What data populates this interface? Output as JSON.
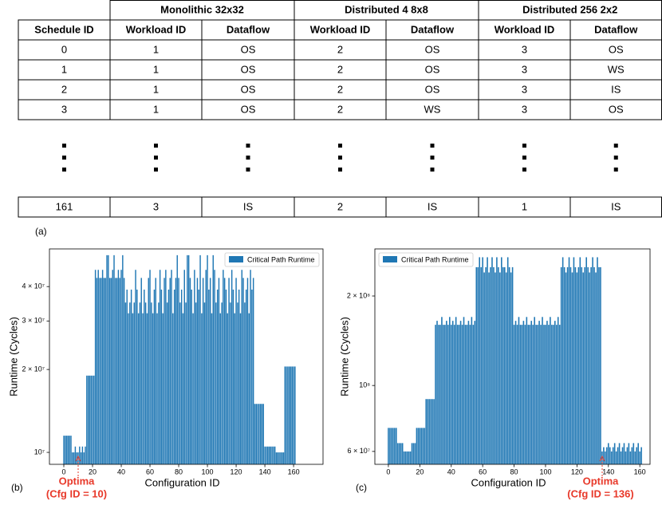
{
  "table": {
    "header_groups": [
      "Monolithic 32x32",
      "Distributed 4 8x8",
      "Distributed 256 2x2"
    ],
    "columns": [
      "Schedule ID",
      "Workload ID",
      "Dataflow",
      "Workload ID",
      "Dataflow",
      "Workload ID",
      "Dataflow"
    ],
    "rows": [
      [
        "0",
        "1",
        "OS",
        "2",
        "OS",
        "3",
        "OS"
      ],
      [
        "1",
        "1",
        "OS",
        "2",
        "OS",
        "3",
        "WS"
      ],
      [
        "2",
        "1",
        "OS",
        "2",
        "OS",
        "3",
        "IS"
      ],
      [
        "3",
        "1",
        "OS",
        "2",
        "WS",
        "3",
        "OS"
      ]
    ],
    "last_row": [
      "161",
      "3",
      "IS",
      "2",
      "IS",
      "1",
      "IS"
    ]
  },
  "panel_labels": [
    "(a)",
    "(b)",
    "(c)"
  ],
  "chart_data": [
    {
      "type": "bar",
      "ylabel": "Runtime (Cycles)",
      "xlabel": "Configuration ID",
      "ylog": true,
      "legend": "upper right",
      "annotations": [
        "Optima",
        "(Cfg ID = 10)"
      ],
      "xlim": [
        -10,
        180.5
      ],
      "xticks": [
        0,
        20,
        40,
        60,
        80,
        100,
        120,
        140,
        160
      ],
      "ylim": [
        9050000,
        54800000
      ],
      "yticks": [
        {
          "value": 10000000,
          "label": "10⁷"
        },
        {
          "value": 20000000,
          "label": "2 × 10⁷"
        },
        {
          "value": 30000000,
          "label": "3 × 10⁷"
        },
        {
          "value": 40000000,
          "label": "4 × 10⁷"
        }
      ],
      "x": [
        0,
        1,
        2,
        3,
        4,
        5,
        6,
        7,
        8,
        9,
        10,
        11,
        12,
        13,
        14,
        15,
        16,
        17,
        18,
        19,
        20,
        21,
        22,
        23,
        24,
        25,
        26,
        27,
        28,
        29,
        30,
        31,
        32,
        33,
        34,
        35,
        36,
        37,
        38,
        39,
        40,
        41,
        42,
        43,
        44,
        45,
        46,
        47,
        48,
        49,
        50,
        51,
        52,
        53,
        54,
        55,
        56,
        57,
        58,
        59,
        60,
        61,
        62,
        63,
        64,
        65,
        66,
        67,
        68,
        69,
        70,
        71,
        72,
        73,
        74,
        75,
        76,
        77,
        78,
        79,
        80,
        81,
        82,
        83,
        84,
        85,
        86,
        87,
        88,
        89,
        90,
        91,
        92,
        93,
        94,
        95,
        96,
        97,
        98,
        99,
        100,
        101,
        102,
        103,
        104,
        105,
        106,
        107,
        108,
        109,
        110,
        111,
        112,
        113,
        114,
        115,
        116,
        117,
        118,
        119,
        120,
        121,
        122,
        123,
        124,
        125,
        126,
        127,
        128,
        129,
        130,
        131,
        132,
        133,
        134,
        135,
        136,
        137,
        138,
        139,
        140,
        141,
        142,
        143,
        144,
        145,
        146,
        147,
        148,
        149,
        150,
        151,
        152,
        153,
        154,
        155,
        156,
        157,
        158,
        159,
        160,
        161
      ],
      "series": [
        {
          "name": "Critical Path Runtime",
          "color": "#1f77b4",
          "values": [
            11500000.0,
            11500000.0,
            11500000.0,
            11500000.0,
            11500000.0,
            11500000.0,
            10000000.0,
            10000000.0,
            10500000.0,
            10000000.0,
            10000000.0,
            10500000.0,
            10000000.0,
            10500000.0,
            10000000.0,
            10500000.0,
            19000000.0,
            19000000.0,
            19000000.0,
            19000000.0,
            19000000.0,
            19000000.0,
            46000000.0,
            43000000.0,
            46000000.0,
            43000000.0,
            43000000.0,
            46000000.0,
            43000000.0,
            43000000.0,
            52000000.0,
            52000000.0,
            43000000.0,
            43000000.0,
            46000000.0,
            52000000.0,
            43000000.0,
            43000000.0,
            46000000.0,
            43000000.0,
            46000000.0,
            52000000.0,
            43000000.0,
            35000000.0,
            39000000.0,
            32000000.0,
            35000000.0,
            39000000.0,
            32000000.0,
            35000000.0,
            46000000.0,
            39000000.0,
            32000000.0,
            35000000.0,
            43000000.0,
            32000000.0,
            39000000.0,
            35000000.0,
            32000000.0,
            43000000.0,
            46000000.0,
            35000000.0,
            32000000.0,
            39000000.0,
            43000000.0,
            32000000.0,
            35000000.0,
            46000000.0,
            39000000.0,
            32000000.0,
            43000000.0,
            46000000.0,
            35000000.0,
            39000000.0,
            43000000.0,
            46000000.0,
            32000000.0,
            39000000.0,
            43000000.0,
            52000000.0,
            43000000.0,
            35000000.0,
            39000000.0,
            32000000.0,
            46000000.0,
            35000000.0,
            52000000.0,
            52000000.0,
            43000000.0,
            39000000.0,
            32000000.0,
            46000000.0,
            35000000.0,
            43000000.0,
            39000000.0,
            52000000.0,
            32000000.0,
            43000000.0,
            35000000.0,
            46000000.0,
            52000000.0,
            39000000.0,
            43000000.0,
            32000000.0,
            52000000.0,
            46000000.0,
            35000000.0,
            39000000.0,
            43000000.0,
            32000000.0,
            35000000.0,
            46000000.0,
            43000000.0,
            39000000.0,
            32000000.0,
            43000000.0,
            35000000.0,
            46000000.0,
            39000000.0,
            32000000.0,
            43000000.0,
            35000000.0,
            39000000.0,
            32000000.0,
            46000000.0,
            43000000.0,
            35000000.0,
            39000000.0,
            43000000.0,
            32000000.0,
            46000000.0,
            39000000.0,
            43000000.0,
            15000000.0,
            15000000.0,
            15000000.0,
            15000000.0,
            15000000.0,
            15000000.0,
            15000000.0,
            10500000.0,
            10500000.0,
            10500000.0,
            10500000.0,
            10500000.0,
            10500000.0,
            10500000.0,
            10500000.0,
            10000000.0,
            10000000.0,
            10000000.0,
            10000000.0,
            10000000.0,
            10000000.0,
            20500000.0,
            20500000.0,
            20500000.0,
            20500000.0,
            20500000.0,
            20500000.0,
            20500000.0,
            20500000.0
          ]
        }
      ]
    },
    {
      "type": "bar",
      "ylabel": "Runtime (Cycles)",
      "xlabel": "Configuration ID",
      "ylog": true,
      "legend": "upper left",
      "annotations": [
        "Optima",
        "(Cfg ID = 136)"
      ],
      "xlim": [
        -8.6,
        166.5
      ],
      "xticks": [
        0,
        20,
        40,
        60,
        80,
        100,
        120,
        140,
        160
      ],
      "ylim": [
        54300000,
        288000000
      ],
      "yticks": [
        {
          "value": 60000000,
          "label": "6 × 10⁷"
        },
        {
          "value": 100000000,
          "label": "10⁸"
        },
        {
          "value": 200000000,
          "label": "2 × 10⁸"
        }
      ],
      "x": [
        0,
        1,
        2,
        3,
        4,
        5,
        6,
        7,
        8,
        9,
        10,
        11,
        12,
        13,
        14,
        15,
        16,
        17,
        18,
        19,
        20,
        21,
        22,
        23,
        24,
        25,
        26,
        27,
        28,
        29,
        30,
        31,
        32,
        33,
        34,
        35,
        36,
        37,
        38,
        39,
        40,
        41,
        42,
        43,
        44,
        45,
        46,
        47,
        48,
        49,
        50,
        51,
        52,
        53,
        54,
        55,
        56,
        57,
        58,
        59,
        60,
        61,
        62,
        63,
        64,
        65,
        66,
        67,
        68,
        69,
        70,
        71,
        72,
        73,
        74,
        75,
        76,
        77,
        78,
        79,
        80,
        81,
        82,
        83,
        84,
        85,
        86,
        87,
        88,
        89,
        90,
        91,
        92,
        93,
        94,
        95,
        96,
        97,
        98,
        99,
        100,
        101,
        102,
        103,
        104,
        105,
        106,
        107,
        108,
        109,
        110,
        111,
        112,
        113,
        114,
        115,
        116,
        117,
        118,
        119,
        120,
        121,
        122,
        123,
        124,
        125,
        126,
        127,
        128,
        129,
        130,
        131,
        132,
        133,
        134,
        135,
        136,
        137,
        138,
        139,
        140,
        141,
        142,
        143,
        144,
        145,
        146,
        147,
        148,
        149,
        150,
        151,
        152,
        153,
        154,
        155,
        156,
        157,
        158,
        159,
        160,
        161
      ],
      "series": [
        {
          "name": "Critical Path Runtime",
          "color": "#1f77b4",
          "values": [
            72000000.0,
            72000000.0,
            72000000.0,
            72000000.0,
            72000000.0,
            72000000.0,
            64000000.0,
            64000000.0,
            64000000.0,
            64000000.0,
            60000000.0,
            60000000.0,
            60000000.0,
            60000000.0,
            60000000.0,
            64000000.0,
            64000000.0,
            64000000.0,
            72000000.0,
            72000000.0,
            72000000.0,
            72000000.0,
            72000000.0,
            72000000.0,
            90000000.0,
            90000000.0,
            90000000.0,
            90000000.0,
            90000000.0,
            90000000.0,
            160000000.0,
            165000000.0,
            160000000.0,
            160000000.0,
            170000000.0,
            160000000.0,
            160000000.0,
            165000000.0,
            160000000.0,
            170000000.0,
            160000000.0,
            165000000.0,
            160000000.0,
            170000000.0,
            160000000.0,
            160000000.0,
            165000000.0,
            160000000.0,
            170000000.0,
            160000000.0,
            160000000.0,
            165000000.0,
            160000000.0,
            170000000.0,
            160000000.0,
            165000000.0,
            250000000.0,
            250000000.0,
            270000000.0,
            250000000.0,
            270000000.0,
            240000000.0,
            250000000.0,
            270000000.0,
            240000000.0,
            250000000.0,
            270000000.0,
            250000000.0,
            240000000.0,
            270000000.0,
            250000000.0,
            240000000.0,
            270000000.0,
            250000000.0,
            250000000.0,
            240000000.0,
            270000000.0,
            250000000.0,
            240000000.0,
            250000000.0,
            160000000.0,
            165000000.0,
            160000000.0,
            170000000.0,
            160000000.0,
            160000000.0,
            165000000.0,
            160000000.0,
            170000000.0,
            160000000.0,
            160000000.0,
            165000000.0,
            160000000.0,
            170000000.0,
            160000000.0,
            160000000.0,
            165000000.0,
            160000000.0,
            170000000.0,
            160000000.0,
            160000000.0,
            165000000.0,
            160000000.0,
            170000000.0,
            160000000.0,
            160000000.0,
            165000000.0,
            160000000.0,
            170000000.0,
            160000000.0,
            250000000.0,
            270000000.0,
            250000000.0,
            240000000.0,
            250000000.0,
            270000000.0,
            250000000.0,
            240000000.0,
            270000000.0,
            250000000.0,
            240000000.0,
            250000000.0,
            270000000.0,
            250000000.0,
            240000000.0,
            250000000.0,
            270000000.0,
            250000000.0,
            240000000.0,
            250000000.0,
            270000000.0,
            250000000.0,
            240000000.0,
            270000000.0,
            250000000.0,
            250000000.0,
            60000000.0,
            62000000.0,
            60000000.0,
            62000000.0,
            64000000.0,
            62000000.0,
            60000000.0,
            62000000.0,
            64000000.0,
            60000000.0,
            62000000.0,
            64000000.0,
            60000000.0,
            62000000.0,
            64000000.0,
            60000000.0,
            62000000.0,
            64000000.0,
            60000000.0,
            62000000.0,
            64000000.0,
            60000000.0,
            62000000.0,
            64000000.0,
            60000000.0,
            62000000.0
          ]
        }
      ]
    }
  ]
}
